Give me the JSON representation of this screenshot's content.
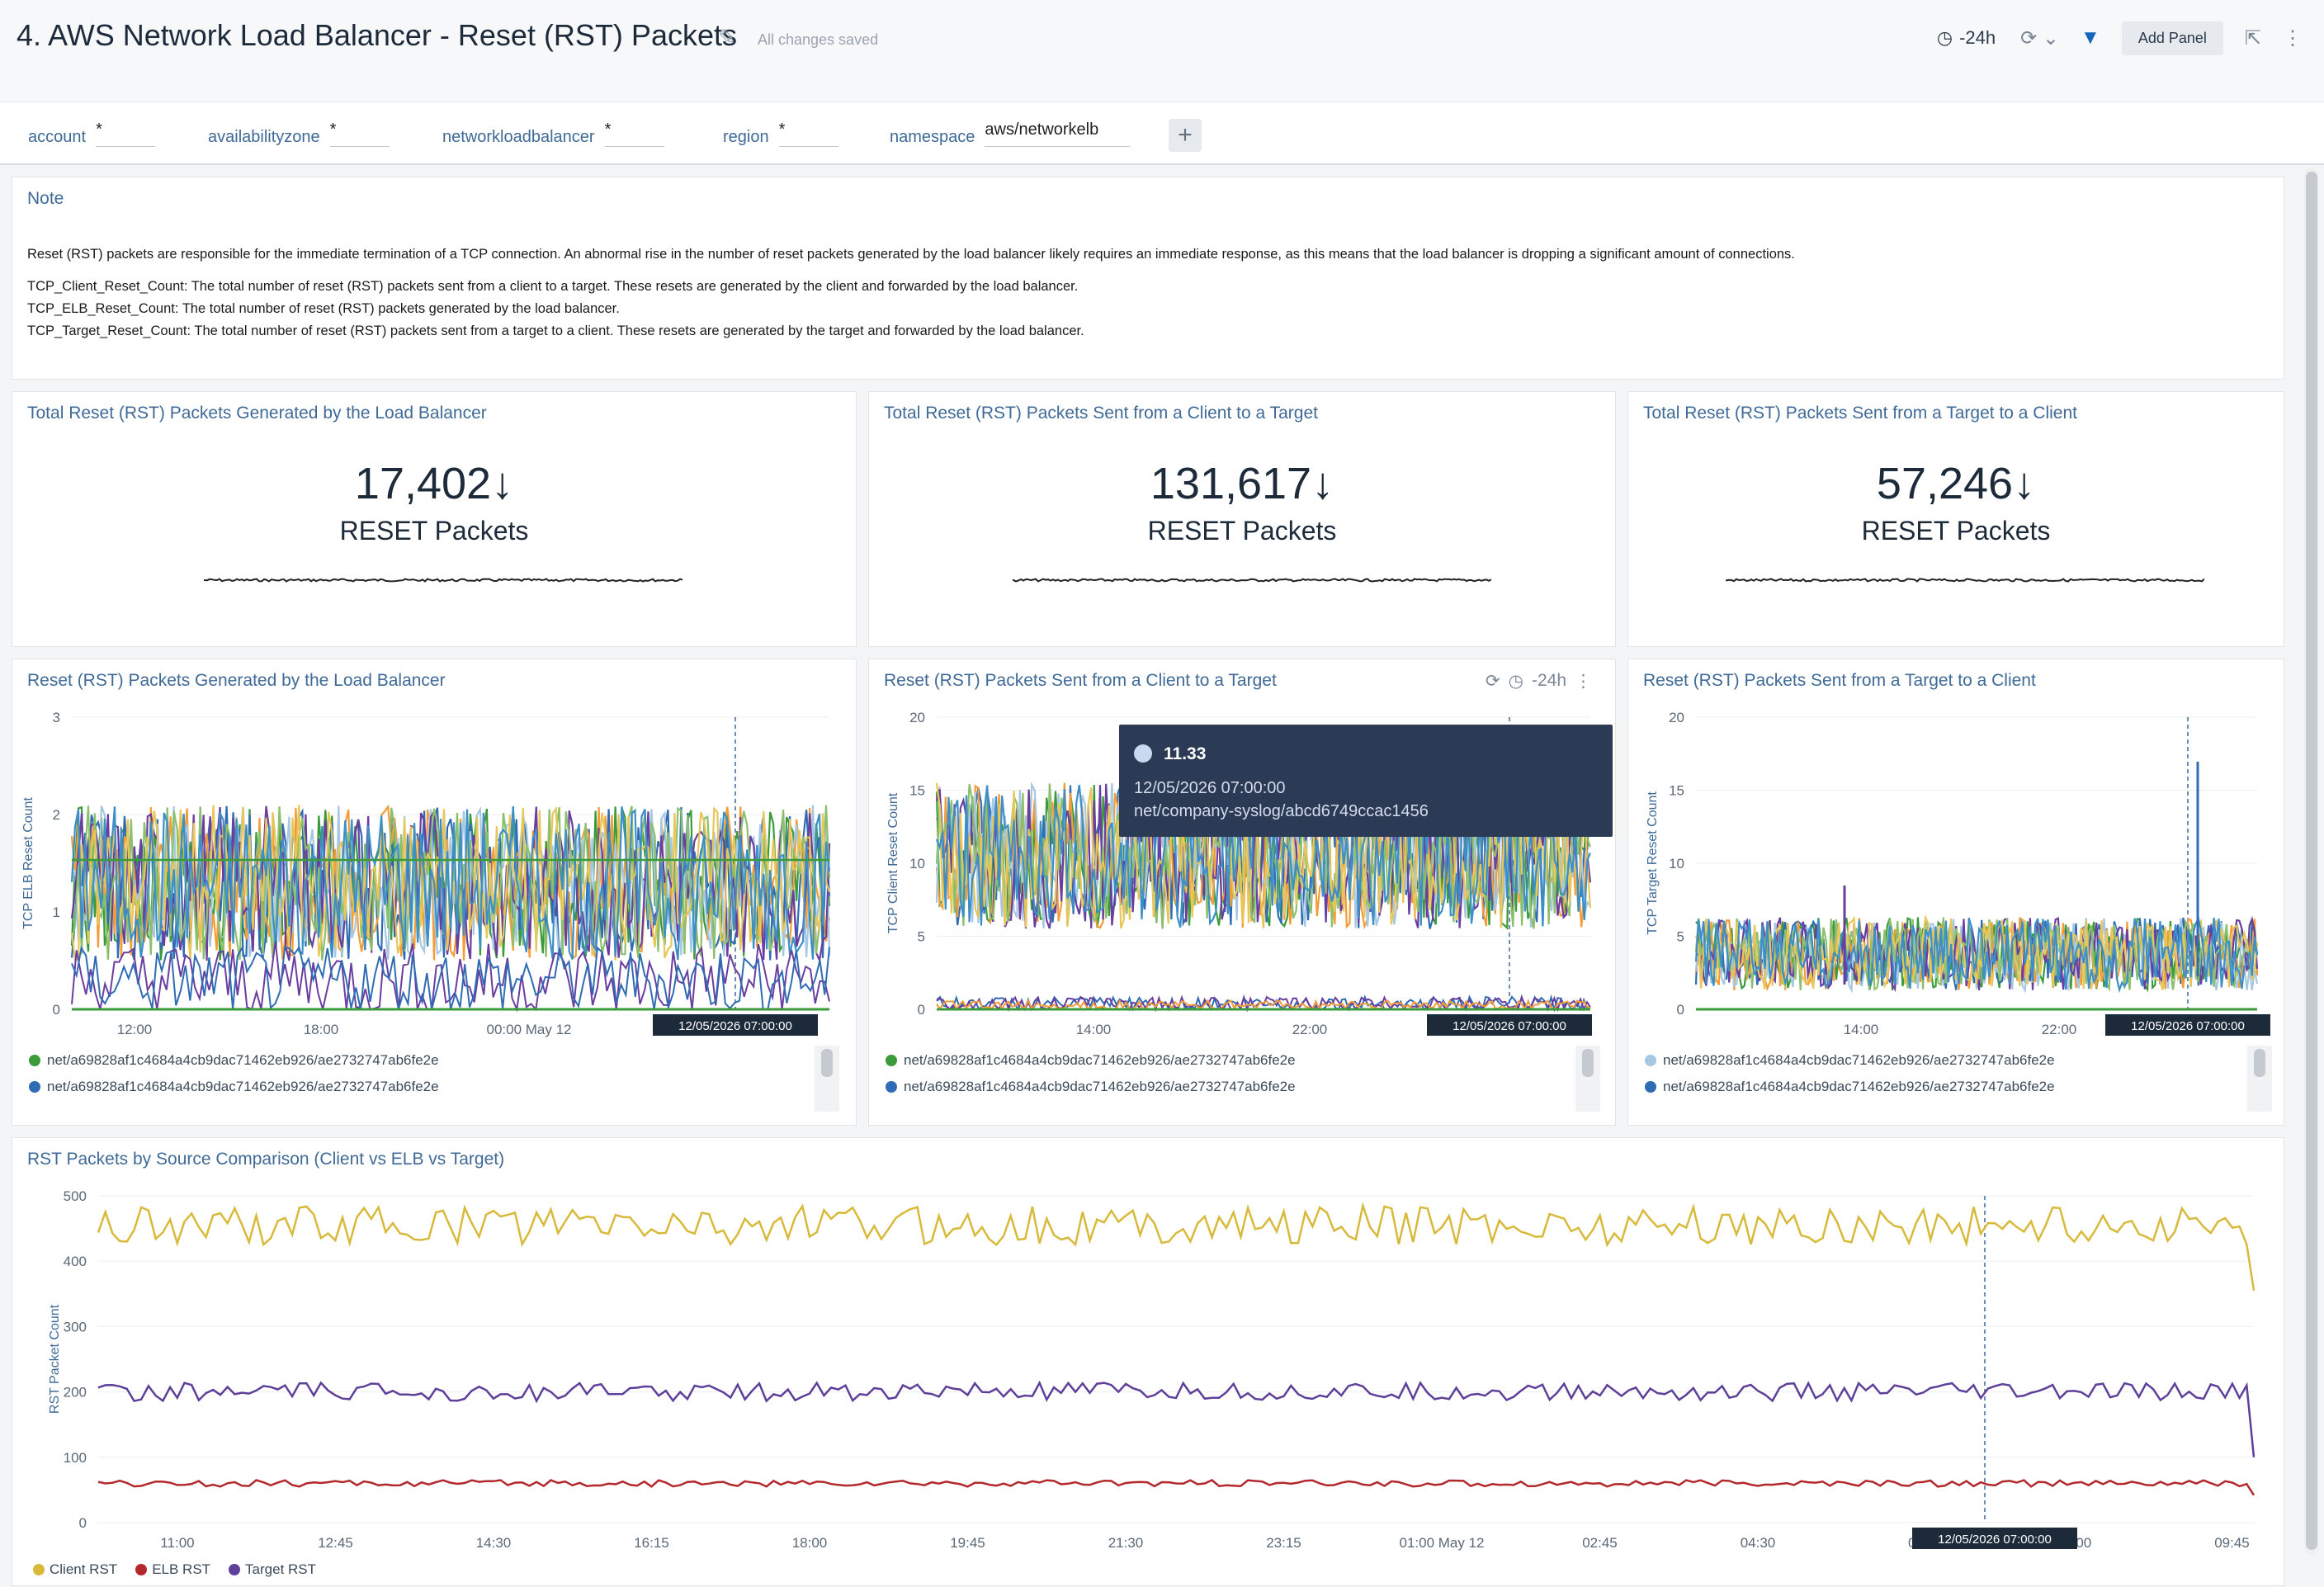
{
  "header": {
    "title": "4. AWS Network Load Balancer - Reset (RST) Packets",
    "saved": "All changes saved",
    "time_range": "-24h",
    "add_panel": "Add Panel"
  },
  "filters": [
    {
      "label": "account",
      "value": "*"
    },
    {
      "label": "availabilityzone",
      "value": "*"
    },
    {
      "label": "networkloadbalancer",
      "value": "*"
    },
    {
      "label": "region",
      "value": "*"
    },
    {
      "label": "namespace",
      "value": "aws/networkelb"
    }
  ],
  "note": {
    "title": "Note",
    "para1": "Reset (RST) packets are responsible for the immediate termination of a TCP connection. An abnormal rise in the number of reset packets generated by the load balancer likely requires an immediate response, as this means that the load balancer is dropping a significant amount of connections.",
    "line1": "TCP_Client_Reset_Count: The total number of reset (RST) packets sent from a client to a target. These resets are generated by the client and forwarded by the load balancer.",
    "line2": "TCP_ELB_Reset_Count: The total number of reset (RST) packets generated by the load balancer.",
    "line3": "TCP_Target_Reset_Count: The total number of reset (RST) packets sent from a target to a client. These resets are generated by the target and forwarded by the load balancer."
  },
  "stats": [
    {
      "title": "Total Reset (RST) Packets Generated by the Load Balancer",
      "value": "17,402",
      "unit": "RESET Packets"
    },
    {
      "title": "Total Reset (RST) Packets Sent from a Client to a Target",
      "value": "131,617",
      "unit": "RESET Packets"
    },
    {
      "title": "Total Reset (RST) Packets Sent from a Target to a Client",
      "value": "57,246",
      "unit": "RESET Packets"
    }
  ],
  "charts": {
    "elb": {
      "title": "Reset (RST) Packets Generated by the Load Balancer",
      "ylabel": "TCP ELB Reset Count",
      "yticks": [
        "3",
        "2",
        "1",
        "0"
      ],
      "xticks": [
        "12:00",
        "18:00",
        "00:00 May 12"
      ],
      "marker": "12/05/2026 07:00:00",
      "legend": [
        "net/a69828af1c4684a4cb9dac71462eb926/ae2732747ab6fe2e",
        "net/a69828af1c4684a4cb9dac71462eb926/ae2732747ab6fe2e"
      ]
    },
    "client": {
      "title": "Reset (RST) Packets Sent from a Client to a Target",
      "ylabel": "TCP Client Reset Count",
      "yticks": [
        "20",
        "15",
        "10",
        "5",
        "0"
      ],
      "xticks": [
        "14:00",
        "22:00"
      ],
      "marker": "12/05/2026 07:00:00",
      "range": "-24h",
      "legend": [
        "net/a69828af1c4684a4cb9dac71462eb926/ae2732747ab6fe2e",
        "net/a69828af1c4684a4cb9dac71462eb926/ae2732747ab6fe2e"
      ],
      "tooltip": {
        "value": "11.33",
        "time": "12/05/2026 07:00:00",
        "series": "net/company-syslog/abcd6749ccac1456"
      }
    },
    "target": {
      "title": "Reset (RST) Packets Sent from a Target to a Client",
      "ylabel": "TCP Target Reset Count",
      "yticks": [
        "20",
        "15",
        "10",
        "5",
        "0"
      ],
      "xticks": [
        "14:00",
        "22:00"
      ],
      "marker": "12/05/2026 07:00:00",
      "legend": [
        "net/a69828af1c4684a4cb9dac71462eb926/ae2732747ab6fe2e",
        "net/a69828af1c4684a4cb9dac71462eb926/ae2732747ab6fe2e"
      ]
    },
    "comparison": {
      "title": "RST Packets by Source Comparison (Client vs ELB vs Target)",
      "ylabel": "RST Packet Count",
      "yticks": [
        "500",
        "400",
        "300",
        "200",
        "100",
        "0"
      ],
      "xticks": [
        "11:00",
        "12:45",
        "14:30",
        "16:15",
        "18:00",
        "19:45",
        "21:30",
        "23:15",
        "01:00 May 12",
        "02:45",
        "04:30",
        "06",
        "08:00",
        "09:45"
      ],
      "marker": "12/05/2026 07:00:00",
      "legend": [
        "Client RST",
        "ELB RST",
        "Target RST"
      ]
    }
  },
  "colors": {
    "accent": "#3f6a97",
    "client": "#d8b93a",
    "elb": "#b3282d",
    "target": "#5e3f99",
    "series": [
      "#3b9b3b",
      "#2f6cb3",
      "#f29d38",
      "#a6c8e3",
      "#6a3da0",
      "#8cc06c",
      "#e7c75a",
      "#3d8fc8"
    ]
  }
}
